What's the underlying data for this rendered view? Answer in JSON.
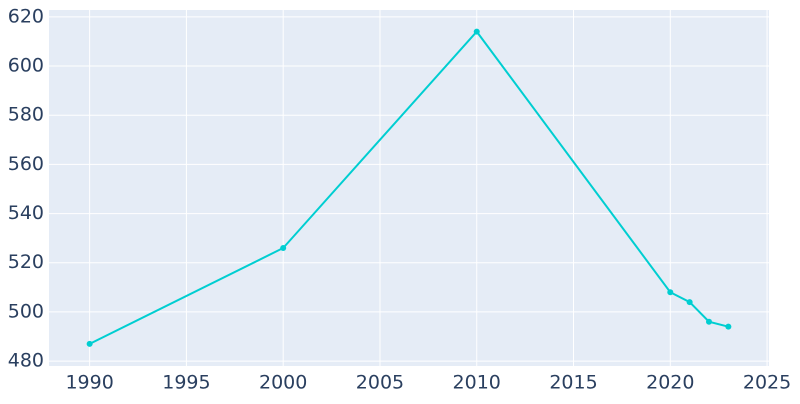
{
  "chart_data": {
    "type": "line",
    "x": [
      1990,
      2000,
      2010,
      2020,
      2021,
      2022,
      2023
    ],
    "series": [
      {
        "color": "#00ced1",
        "values": [
          487,
          526,
          614,
          508,
          504,
          496,
          494
        ]
      }
    ],
    "xlim": [
      1987.9,
      2025.1
    ],
    "xticks": [
      1990,
      1995,
      2000,
      2005,
      2010,
      2015,
      2020,
      2025
    ],
    "ylim": [
      478,
      622.8
    ],
    "yticks": [
      480,
      500,
      520,
      540,
      560,
      580,
      600,
      620
    ],
    "grid": true,
    "background": "#e5ecf6"
  }
}
